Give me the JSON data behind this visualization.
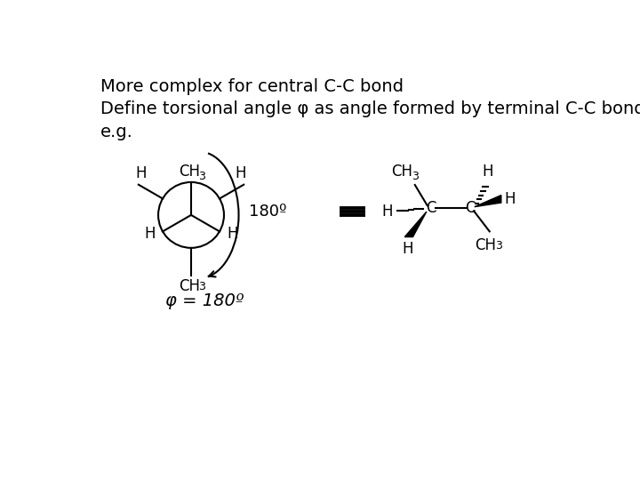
{
  "title1": "More complex for central C-C bond",
  "title2": "Define torsional angle φ as angle formed by terminal C-C bonds",
  "eg_label": "e.g.",
  "phi_label": "φ = 180º",
  "angle_label": "180º",
  "bg_color": "#ffffff",
  "text_color": "#000000",
  "font_size_title": 14,
  "font_size_chem": 12,
  "font_size_sub": 9
}
